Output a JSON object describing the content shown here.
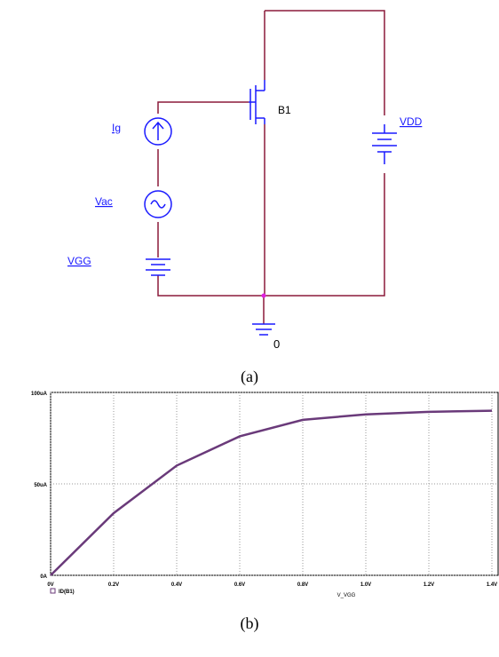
{
  "circuit": {
    "labels": {
      "ig": "Ig",
      "vac": "Vac",
      "vgg": "VGG",
      "b1": "B1",
      "vdd": "VDD",
      "ground": "0"
    },
    "caption": "(a)"
  },
  "chart_data": {
    "type": "line",
    "x": [
      0,
      0.2,
      0.4,
      0.6,
      0.8,
      1.0,
      1.2,
      1.4
    ],
    "series": [
      {
        "name": "ID(B1)",
        "color": "#6a3a7a",
        "values": [
          0,
          34,
          60,
          76,
          85,
          88,
          89.4,
          90
        ]
      }
    ],
    "xlabel": "V_VGG",
    "xlim": [
      0,
      1.4
    ],
    "ylim": [
      0,
      100
    ],
    "xticks": [
      {
        "value": 0,
        "label": "0V"
      },
      {
        "value": 0.2,
        "label": "0.2V"
      },
      {
        "value": 0.4,
        "label": "0.4V"
      },
      {
        "value": 0.6,
        "label": "0.6V"
      },
      {
        "value": 0.8,
        "label": "0.8V"
      },
      {
        "value": 1.0,
        "label": "1.0V"
      },
      {
        "value": 1.2,
        "label": "1.2V"
      },
      {
        "value": 1.4,
        "label": "1.4V"
      }
    ],
    "yticks": [
      {
        "value": 0,
        "label": "0A"
      },
      {
        "value": 50,
        "label": "50uA"
      },
      {
        "value": 100,
        "label": "100uA"
      }
    ],
    "grid": true,
    "caption": "(b)"
  }
}
